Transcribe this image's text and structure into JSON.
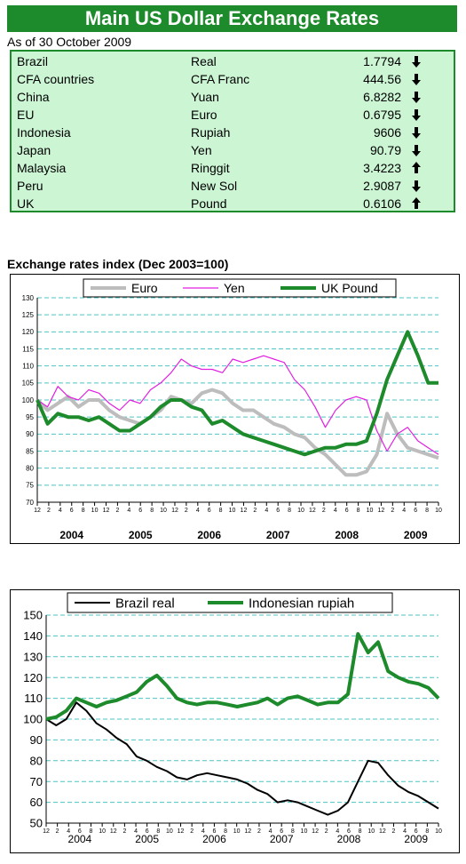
{
  "header": {
    "title": "Main US Dollar Exchange Rates",
    "as_of": "As of 30 October 2009"
  },
  "rates": [
    {
      "country": "Brazil",
      "currency": "Real",
      "value": "1.7794",
      "direction": "down"
    },
    {
      "country": "CFA countries",
      "currency": "CFA Franc",
      "value": "444.56",
      "direction": "down"
    },
    {
      "country": "China",
      "currency": "Yuan",
      "value": "6.8282",
      "direction": "down"
    },
    {
      "country": "EU",
      "currency": "Euro",
      "value": "0.6795",
      "direction": "down"
    },
    {
      "country": "Indonesia",
      "currency": "Rupiah",
      "value": "9606",
      "direction": "down"
    },
    {
      "country": "Japan",
      "currency": "Yen",
      "value": "90.79",
      "direction": "down"
    },
    {
      "country": "Malaysia",
      "currency": "Ringgit",
      "value": "3.4223",
      "direction": "up"
    },
    {
      "country": "Peru",
      "currency": "New Sol",
      "value": "2.9087",
      "direction": "down"
    },
    {
      "country": "UK",
      "currency": "Pound",
      "value": "0.6106",
      "direction": "up"
    }
  ],
  "colors": {
    "header_bg": "#1d8a2b",
    "table_bg": "#ccf5d4",
    "euro": "#bdbdbd",
    "yen": "#e020e0",
    "pound": "#1d8a2b",
    "real": "#000000",
    "rupiah": "#1d8a2b",
    "grid": "#4cc4c4"
  },
  "chart_data": [
    {
      "type": "line",
      "title": "Exchange rates index (Dec 2003=100)",
      "ylim": [
        70,
        130
      ],
      "yticks": [
        70,
        75,
        80,
        85,
        90,
        95,
        100,
        105,
        110,
        115,
        120,
        125,
        130
      ],
      "month_ticks": [
        "12",
        "2",
        "4",
        "6",
        "8",
        "10",
        "12",
        "2",
        "4",
        "6",
        "8",
        "10",
        "12",
        "2",
        "4",
        "6",
        "8",
        "10",
        "12",
        "2",
        "4",
        "6",
        "8",
        "10",
        "12",
        "2",
        "4",
        "6",
        "8",
        "10",
        "12",
        "2",
        "4",
        "6",
        "8",
        "10"
      ],
      "year_labels": [
        "2004",
        "2005",
        "2006",
        "2007",
        "2008",
        "2009"
      ],
      "legend_placement": "top",
      "grid": "horizontal-dashed",
      "series": [
        {
          "name": "Euro",
          "values": [
            100,
            97,
            99,
            101,
            98,
            100,
            100,
            97,
            95,
            94,
            93,
            95,
            97,
            101,
            100,
            99,
            102,
            103,
            102,
            99,
            97,
            97,
            95,
            93,
            92,
            90,
            89,
            86,
            84,
            81,
            78,
            78,
            79,
            84,
            96,
            90,
            86,
            85,
            84,
            83
          ]
        },
        {
          "name": "Yen",
          "values": [
            100,
            98,
            104,
            101,
            100,
            103,
            102,
            99,
            97,
            100,
            99,
            103,
            105,
            108,
            112,
            110,
            109,
            109,
            108,
            112,
            111,
            112,
            113,
            112,
            111,
            106,
            103,
            98,
            92,
            97,
            100,
            101,
            100,
            91,
            85,
            90,
            92,
            88,
            86,
            84
          ]
        },
        {
          "name": "UK Pound",
          "values": [
            100,
            93,
            96,
            95,
            95,
            94,
            95,
            93,
            91,
            91,
            93,
            95,
            98,
            100,
            100,
            98,
            97,
            93,
            94,
            92,
            90,
            89,
            88,
            87,
            86,
            85,
            84,
            85,
            86,
            86,
            87,
            87,
            88,
            96,
            106,
            113,
            120,
            113,
            105,
            105
          ]
        }
      ]
    },
    {
      "type": "line",
      "ylim": [
        50,
        150
      ],
      "yticks": [
        50,
        60,
        70,
        80,
        90,
        100,
        110,
        120,
        130,
        140,
        150
      ],
      "month_ticks": [
        "12",
        "2",
        "4",
        "6",
        "8",
        "10",
        "12",
        "2",
        "4",
        "6",
        "8",
        "10",
        "12",
        "2",
        "4",
        "6",
        "8",
        "10",
        "12",
        "2",
        "4",
        "6",
        "8",
        "10",
        "12",
        "2",
        "4",
        "6",
        "8",
        "10",
        "12",
        "2",
        "4",
        "6",
        "8",
        "10"
      ],
      "year_labels": [
        "2004",
        "2005",
        "2006",
        "2007",
        "2008",
        "2009"
      ],
      "legend_placement": "top",
      "grid": "horizontal-dashed",
      "series": [
        {
          "name": "Brazil real",
          "values": [
            100,
            97,
            100,
            108,
            104,
            98,
            95,
            91,
            88,
            82,
            80,
            77,
            75,
            72,
            71,
            73,
            74,
            73,
            72,
            71,
            69,
            66,
            64,
            60,
            61,
            60,
            58,
            56,
            54,
            56,
            60,
            70,
            80,
            79,
            73,
            68,
            65,
            63,
            60,
            57
          ]
        },
        {
          "name": "Indonesian rupiah",
          "values": [
            100,
            101,
            104,
            110,
            108,
            106,
            108,
            109,
            111,
            113,
            118,
            121,
            116,
            110,
            108,
            107,
            108,
            108,
            107,
            106,
            107,
            108,
            110,
            107,
            110,
            111,
            109,
            107,
            108,
            108,
            112,
            141,
            132,
            137,
            123,
            120,
            118,
            117,
            115,
            110
          ]
        }
      ]
    }
  ]
}
